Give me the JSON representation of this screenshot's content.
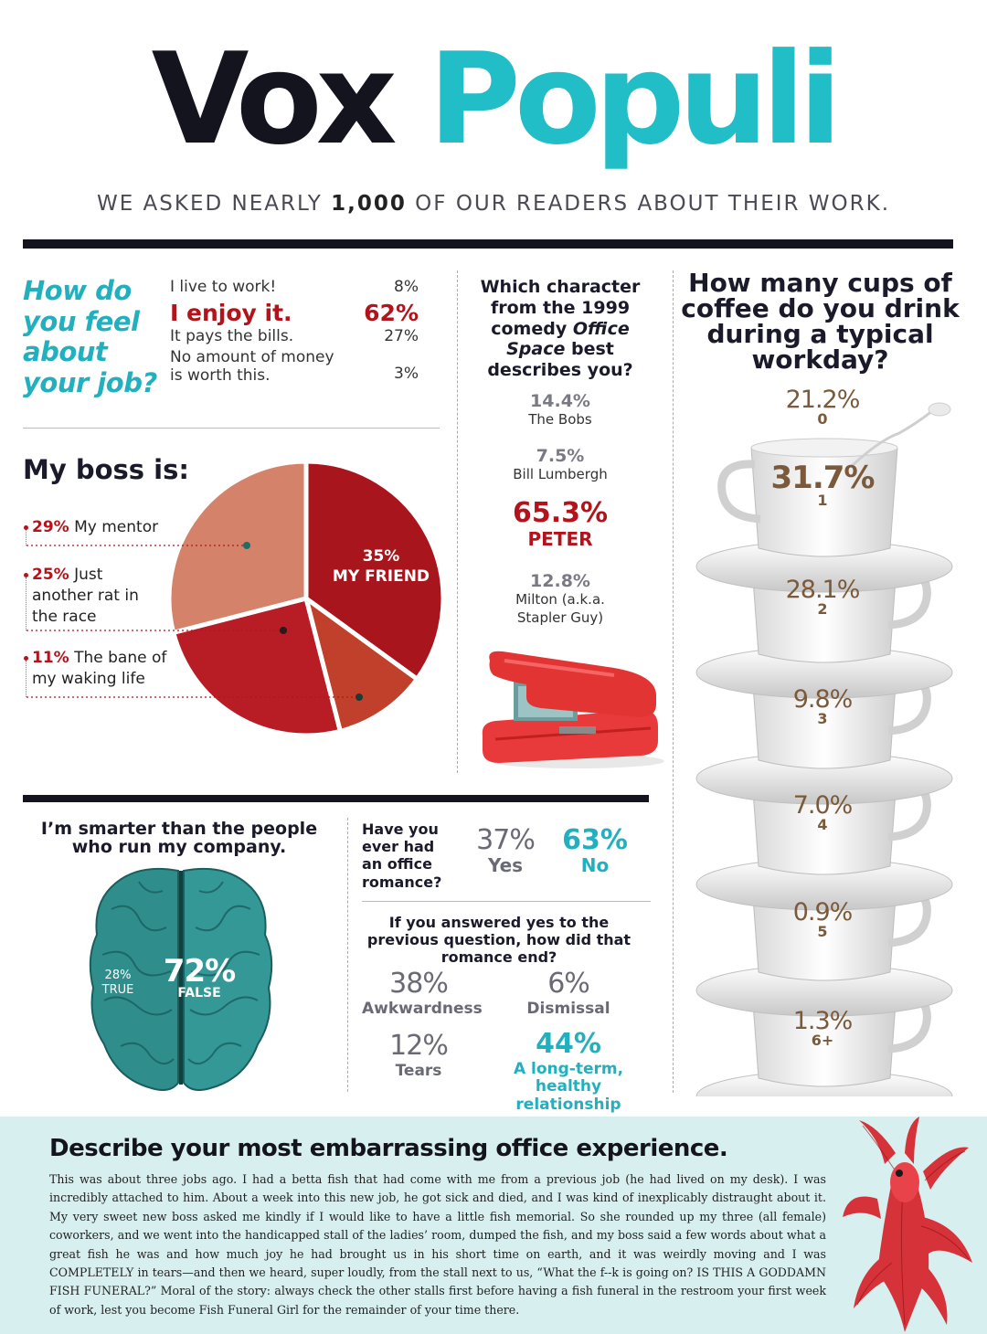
{
  "header": {
    "title_word1": "Vox",
    "title_word2": "Populi",
    "subtitle_pre": "WE ASKED NEARLY ",
    "subtitle_num": "1,000",
    "subtitle_post": " OF OUR READERS ABOUT THEIR WORK."
  },
  "job_feeling": {
    "question": "How do you feel about your job?",
    "options": [
      {
        "label": "I live to work!",
        "pct": "8%"
      },
      {
        "label": "I enjoy it.",
        "pct": "62%"
      },
      {
        "label": "It pays the bills.",
        "pct": "27%"
      },
      {
        "label_line1": "No amount of money",
        "label_line2": "is worth this.",
        "pct": "3%"
      }
    ]
  },
  "boss": {
    "title": "My boss is:",
    "items": [
      {
        "pct": "29%",
        "label": " My mentor"
      },
      {
        "pct": "25%",
        "label": " Just",
        "label_line2": "another rat in",
        "label_line3": "the race"
      },
      {
        "pct": "11%",
        "label": " The bane of",
        "label_line2": "my waking life"
      }
    ],
    "center_pct": "35%",
    "center_label": "MY FRIEND"
  },
  "chart_data": {
    "type": "pie",
    "title": "My boss is:",
    "slices": [
      {
        "label": "My friend",
        "value": 35,
        "color": "#a8151c"
      },
      {
        "label": "The bane of my waking life",
        "value": 11,
        "color": "#c0402c"
      },
      {
        "label": "Just another rat in the race",
        "value": 25,
        "color": "#b81c24"
      },
      {
        "label": "My mentor",
        "value": 29,
        "color": "#d4826a"
      }
    ]
  },
  "office_space": {
    "question_l1": "Which character",
    "question_l2": "from the 1999",
    "question_l3a": "comedy ",
    "question_l3b": "Office",
    "question_l4a": "Space",
    "question_l4b": " best",
    "question_l5": "describes you?",
    "characters": [
      {
        "pct": "14.4%",
        "name": "The Bobs"
      },
      {
        "pct": "7.5%",
        "name": "Bill Lumbergh"
      },
      {
        "pct": "65.3%",
        "name": "PETER"
      },
      {
        "pct": "12.8%",
        "name_line1": "Milton (a.k.a.",
        "name_line2": "Stapler Guy)"
      }
    ]
  },
  "coffee": {
    "question": "How many cups of coffee do you drink during a typical workday?",
    "cups": [
      {
        "pct": "21.2%",
        "label": "0"
      },
      {
        "pct": "31.7%",
        "label": "1"
      },
      {
        "pct": "28.1%",
        "label": "2"
      },
      {
        "pct": "9.8%",
        "label": "3"
      },
      {
        "pct": "7.0%",
        "label": "4"
      },
      {
        "pct": "0.9%",
        "label": "5"
      },
      {
        "pct": "1.3%",
        "label": "6+"
      }
    ]
  },
  "smarter": {
    "question_l1": "I’m smarter than the people",
    "question_l2": "who run my company.",
    "true_pct": "28%",
    "true_label": "TRUE",
    "false_pct": "72%",
    "false_label": "FALSE"
  },
  "romance": {
    "question_l1": "Have you",
    "question_l2": "ever had",
    "question_l3": "an office",
    "question_l4": "romance?",
    "yes_pct": "37%",
    "yes_label": "Yes",
    "no_pct": "63%",
    "no_label": "No"
  },
  "romance_end": {
    "question_l1": "If you answered yes to the",
    "question_l2": "previous question, how did that",
    "question_l3": "romance end?",
    "answers": [
      {
        "pct": "38%",
        "label": "Awkwardness"
      },
      {
        "pct": "6%",
        "label": "Dismissal"
      },
      {
        "pct": "12%",
        "label": "Tears"
      },
      {
        "pct": "44%",
        "label_line1": "A long-term,",
        "label_line2": "healthy relationship"
      }
    ]
  },
  "embarrassing": {
    "title": "Describe your most embarrassing office experience.",
    "story": "This was about three jobs ago. I had a betta fish that had come with me from a previous job (he had lived on my desk). I was incredibly attached to him. About a week into this new job, he got sick and died, and I was kind of inexplicably distraught about it. My very sweet new boss asked me kindly if I would like to have a little fish memorial. So she rounded up my three (all female) coworkers, and we went into the handicapped stall of the ladies’ room, dumped the fish, and my boss said a few words about what a great fish he was and how much joy he had brought us in his short time on earth, and it was weirdly moving and I was COMPLETELY in tears—and then we heard, super loudly, from the stall next to us, “What the f--k is going on? IS THIS A GODDAMN FISH FUNERAL?” Moral of the story: always check the other stalls first before having a fish funeral in the restroom your first week of work, lest you become Fish Funeral Girl for the remainder of your time there."
  }
}
